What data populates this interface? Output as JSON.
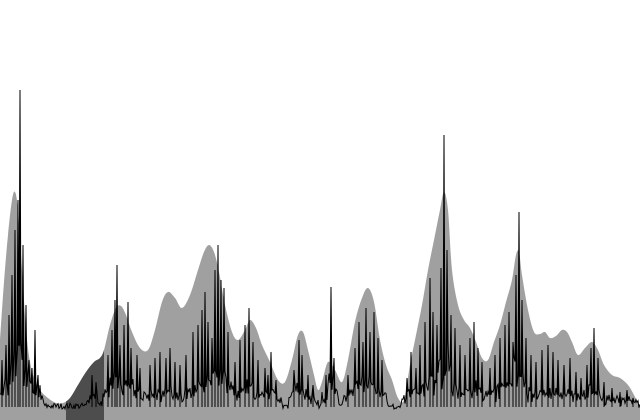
{
  "chart_data": {
    "type": "area",
    "title": "",
    "xlabel": "",
    "ylabel": "",
    "xlim": [
      0,
      640
    ],
    "ylim": [
      0,
      340
    ],
    "grid": false,
    "legend": "none",
    "colors": {
      "envelope": "#a0a0a0",
      "highlight": "#4d4d4d",
      "signal": "#000000",
      "background": "#ffffff"
    },
    "highlight_range": [
      66,
      104
    ],
    "series": [
      {
        "key": "envelope",
        "style": "filled-area",
        "points": [
          [
            0,
            80
          ],
          [
            4,
            138
          ],
          [
            8,
            185
          ],
          [
            12,
            220
          ],
          [
            15,
            228
          ],
          [
            18,
            210
          ],
          [
            22,
            150
          ],
          [
            27,
            80
          ],
          [
            33,
            45
          ],
          [
            40,
            30
          ],
          [
            48,
            22
          ],
          [
            56,
            17
          ],
          [
            63,
            17
          ],
          [
            70,
            22
          ],
          [
            78,
            35
          ],
          [
            86,
            48
          ],
          [
            94,
            58
          ],
          [
            100,
            62
          ],
          [
            104,
            70
          ],
          [
            110,
            95
          ],
          [
            116,
            112
          ],
          [
            121,
            114
          ],
          [
            126,
            105
          ],
          [
            132,
            88
          ],
          [
            140,
            72
          ],
          [
            148,
            70
          ],
          [
            155,
            90
          ],
          [
            162,
            118
          ],
          [
            168,
            128
          ],
          [
            175,
            122
          ],
          [
            182,
            112
          ],
          [
            190,
            125
          ],
          [
            198,
            150
          ],
          [
            204,
            168
          ],
          [
            209,
            175
          ],
          [
            214,
            168
          ],
          [
            219,
            148
          ],
          [
            225,
            115
          ],
          [
            232,
            88
          ],
          [
            238,
            80
          ],
          [
            245,
            90
          ],
          [
            250,
            100
          ],
          [
            256,
            92
          ],
          [
            262,
            75
          ],
          [
            270,
            58
          ],
          [
            278,
            40
          ],
          [
            285,
            38
          ],
          [
            292,
            60
          ],
          [
            298,
            85
          ],
          [
            303,
            88
          ],
          [
            308,
            70
          ],
          [
            314,
            45
          ],
          [
            318,
            30
          ],
          [
            322,
            38
          ],
          [
            328,
            58
          ],
          [
            335,
            50
          ],
          [
            342,
            38
          ],
          [
            348,
            60
          ],
          [
            355,
            98
          ],
          [
            362,
            122
          ],
          [
            368,
            132
          ],
          [
            374,
            118
          ],
          [
            380,
            80
          ],
          [
            386,
            55
          ],
          [
            392,
            40
          ],
          [
            398,
            22
          ],
          [
            404,
            20
          ],
          [
            410,
            55
          ],
          [
            416,
            85
          ],
          [
            422,
            115
          ],
          [
            428,
            150
          ],
          [
            434,
            180
          ],
          [
            440,
            210
          ],
          [
            444,
            228
          ],
          [
            448,
            210
          ],
          [
            452,
            150
          ],
          [
            458,
            115
          ],
          [
            464,
            100
          ],
          [
            470,
            92
          ],
          [
            476,
            78
          ],
          [
            482,
            62
          ],
          [
            488,
            60
          ],
          [
            494,
            78
          ],
          [
            500,
            95
          ],
          [
            506,
            118
          ],
          [
            512,
            140
          ],
          [
            516,
            165
          ],
          [
            519,
            168
          ],
          [
            522,
            145
          ],
          [
            528,
            110
          ],
          [
            534,
            88
          ],
          [
            540,
            86
          ],
          [
            545,
            88
          ],
          [
            550,
            82
          ],
          [
            556,
            84
          ],
          [
            562,
            90
          ],
          [
            567,
            88
          ],
          [
            572,
            78
          ],
          [
            578,
            65
          ],
          [
            585,
            72
          ],
          [
            592,
            78
          ],
          [
            598,
            70
          ],
          [
            604,
            55
          ],
          [
            612,
            45
          ],
          [
            620,
            42
          ],
          [
            628,
            35
          ],
          [
            634,
            25
          ],
          [
            640,
            12
          ]
        ]
      },
      {
        "key": "signal",
        "style": "line",
        "baseline": 13,
        "spikes": [
          [
            2,
            60
          ],
          [
            6,
            75
          ],
          [
            9,
            105
          ],
          [
            12,
            145
          ],
          [
            15,
            190
          ],
          [
            18,
            220
          ],
          [
            20,
            330
          ],
          [
            23,
            175
          ],
          [
            26,
            115
          ],
          [
            29,
            60
          ],
          [
            32,
            52
          ],
          [
            35,
            90
          ],
          [
            38,
            45
          ],
          [
            92,
            45
          ],
          [
            96,
            38
          ],
          [
            108,
            65
          ],
          [
            112,
            90
          ],
          [
            115,
            120
          ],
          [
            117,
            155
          ],
          [
            120,
            75
          ],
          [
            124,
            95
          ],
          [
            128,
            118
          ],
          [
            131,
            72
          ],
          [
            137,
            65
          ],
          [
            140,
            52
          ],
          [
            150,
            55
          ],
          [
            155,
            62
          ],
          [
            160,
            68
          ],
          [
            166,
            62
          ],
          [
            170,
            72
          ],
          [
            175,
            58
          ],
          [
            180,
            55
          ],
          [
            186,
            65
          ],
          [
            193,
            88
          ],
          [
            198,
            95
          ],
          [
            202,
            110
          ],
          [
            205,
            128
          ],
          [
            208,
            98
          ],
          [
            212,
            82
          ],
          [
            215,
            150
          ],
          [
            218,
            175
          ],
          [
            221,
            140
          ],
          [
            224,
            132
          ],
          [
            228,
            88
          ],
          [
            235,
            58
          ],
          [
            240,
            80
          ],
          [
            245,
            95
          ],
          [
            249,
            112
          ],
          [
            253,
            78
          ],
          [
            258,
            60
          ],
          [
            265,
            52
          ],
          [
            268,
            45
          ],
          [
            271,
            68
          ],
          [
            276,
            40
          ],
          [
            294,
            50
          ],
          [
            299,
            80
          ],
          [
            302,
            65
          ],
          [
            308,
            45
          ],
          [
            313,
            35
          ],
          [
            326,
            45
          ],
          [
            331,
            133
          ],
          [
            334,
            62
          ],
          [
            348,
            45
          ],
          [
            355,
            72
          ],
          [
            359,
            98
          ],
          [
            363,
            78
          ],
          [
            366,
            112
          ],
          [
            370,
            88
          ],
          [
            374,
            108
          ],
          [
            378,
            82
          ],
          [
            382,
            60
          ],
          [
            407,
            42
          ],
          [
            411,
            68
          ],
          [
            416,
            52
          ],
          [
            420,
            75
          ],
          [
            425,
            98
          ],
          [
            430,
            142
          ],
          [
            433,
            108
          ],
          [
            437,
            95
          ],
          [
            441,
            152
          ],
          [
            444,
            285
          ],
          [
            447,
            170
          ],
          [
            451,
            105
          ],
          [
            455,
            92
          ],
          [
            460,
            75
          ],
          [
            465,
            65
          ],
          [
            470,
            82
          ],
          [
            474,
            98
          ],
          [
            478,
            72
          ],
          [
            482,
            58
          ],
          [
            490,
            52
          ],
          [
            495,
            65
          ],
          [
            500,
            82
          ],
          [
            505,
            95
          ],
          [
            509,
            108
          ],
          [
            513,
            78
          ],
          [
            516,
            145
          ],
          [
            519,
            208
          ],
          [
            522,
            120
          ],
          [
            526,
            82
          ],
          [
            531,
            65
          ],
          [
            536,
            58
          ],
          [
            542,
            70
          ],
          [
            548,
            75
          ],
          [
            553,
            68
          ],
          [
            558,
            60
          ],
          [
            564,
            55
          ],
          [
            570,
            62
          ],
          [
            576,
            48
          ],
          [
            581,
            42
          ],
          [
            587,
            55
          ],
          [
            591,
            72
          ],
          [
            594,
            92
          ],
          [
            598,
            62
          ],
          [
            604,
            38
          ],
          [
            612,
            32
          ],
          [
            620,
            28
          ],
          [
            627,
            30
          ],
          [
            633,
            22
          ]
        ]
      }
    ]
  }
}
